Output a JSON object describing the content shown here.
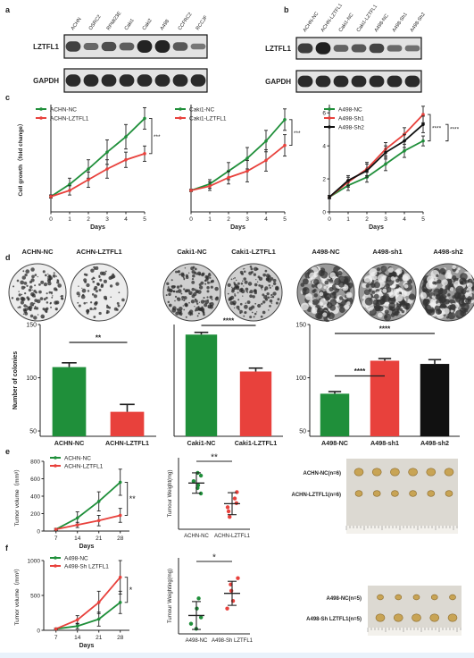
{
  "panel_letters": [
    "a",
    "b",
    "c",
    "d",
    "e",
    "f"
  ],
  "colors": {
    "nc": "#1f8f3a",
    "treat": "#e8413c",
    "sh2": "#111111",
    "axis": "#222222",
    "blot_bg": "#e3e3e3",
    "band": "#1d1d1d",
    "photo_bg": "#dcd9d2",
    "tumor": "#c8a455"
  },
  "blots": {
    "a": {
      "lanes": [
        "ACHN",
        "OSRC2",
        "RPMI23E",
        "Caki1",
        "Caki2",
        "A498",
        "CCFRC2",
        "RCCJF"
      ],
      "rows": [
        {
          "label": "LZTFL1",
          "intensity": [
            0.72,
            0.42,
            0.62,
            0.5,
            0.95,
            0.95,
            0.55,
            0.3
          ]
        },
        {
          "label": "GAPDH",
          "intensity": [
            0.9,
            0.9,
            0.9,
            0.9,
            0.9,
            0.9,
            0.9,
            0.9
          ]
        }
      ]
    },
    "b": {
      "lanes": [
        "ACHN-NC",
        "ACHN-LZTFL1",
        "Caki1-NC",
        "Caki1-LZTFL1",
        "A498-NC",
        "A498-Sh1",
        "A498-Sh2"
      ],
      "rows": [
        {
          "label": "LZTFL1",
          "intensity": [
            0.75,
            0.98,
            0.45,
            0.55,
            0.7,
            0.4,
            0.35
          ]
        },
        {
          "label": "GAPDH",
          "intensity": [
            0.9,
            0.9,
            0.9,
            0.9,
            0.9,
            0.9,
            0.9
          ]
        }
      ]
    }
  },
  "colony_dishes": {
    "labels": [
      "ACHN-NC",
      "ACHN-LZTFL1",
      "Caki1-NC",
      "Caki1-LZTFL1",
      "A498-NC",
      "A498-sh1",
      "A498-sh2"
    ],
    "density": [
      0.45,
      0.22,
      0.7,
      0.55,
      0.75,
      0.85,
      0.88
    ]
  },
  "tumor_photos": {
    "e": {
      "rows": [
        {
          "label": "ACHN-NC(n=6)",
          "count": 6,
          "size": 1.0
        },
        {
          "label": "ACHN-LZTFL1(n=6)",
          "count": 6,
          "size": 0.8
        }
      ]
    },
    "f": {
      "rows": [
        {
          "label": "A498-NC(n=5)",
          "count": 5,
          "size": 0.7
        },
        {
          "label": "A498-Sh LZTFL1(n=5)",
          "count": 5,
          "size": 1.0
        }
      ]
    }
  },
  "chart_data": [
    {
      "id": "c1",
      "type": "line",
      "ylabel": "Cell growth（fold change）",
      "xlabel": "Days",
      "x": [
        0,
        1,
        2,
        3,
        4,
        5
      ],
      "xlim": [
        0,
        5
      ],
      "ylim": [
        0,
        7
      ],
      "x_ticks": [
        "0",
        "1",
        "2",
        "3",
        "4",
        "5"
      ],
      "series": [
        {
          "name": "ACHN-NC",
          "values": [
            1.0,
            1.8,
            2.8,
            3.9,
            4.9,
            6.1
          ],
          "err": [
            0.1,
            0.4,
            0.6,
            0.8,
            0.8,
            0.7
          ]
        },
        {
          "name": "ACHN-LZTFL1",
          "values": [
            1.0,
            1.4,
            2.1,
            2.8,
            3.4,
            3.8
          ],
          "err": [
            0.1,
            0.3,
            0.5,
            0.6,
            0.5,
            0.5
          ]
        }
      ],
      "significance": "***"
    },
    {
      "id": "c2",
      "type": "line",
      "xlabel": "Days",
      "x": [
        0,
        1,
        2,
        3,
        4,
        5
      ],
      "xlim": [
        0,
        5
      ],
      "ylim": [
        0,
        5
      ],
      "x_ticks": [
        "0",
        "1",
        "2",
        "3",
        "4",
        "5"
      ],
      "series": [
        {
          "name": "Caki1-NC",
          "values": [
            1.0,
            1.3,
            1.9,
            2.5,
            3.3,
            4.3
          ],
          "err": [
            0.05,
            0.2,
            0.4,
            0.5,
            0.5,
            0.5
          ]
        },
        {
          "name": "Caki1-LZTFL1",
          "values": [
            1.0,
            1.2,
            1.6,
            1.9,
            2.4,
            3.1
          ],
          "err": [
            0.05,
            0.2,
            0.3,
            0.5,
            0.5,
            0.5
          ]
        }
      ],
      "significance": "***"
    },
    {
      "id": "c3",
      "type": "line",
      "xlabel": "Days",
      "x": [
        0,
        1,
        2,
        3,
        4,
        5
      ],
      "xlim": [
        0,
        5
      ],
      "ylim": [
        0,
        6.5
      ],
      "x_ticks": [
        "0",
        "1",
        "2",
        "3",
        "4",
        "5"
      ],
      "y_ticks": [
        "0",
        "2",
        "4",
        "6"
      ],
      "series": [
        {
          "name": "A498-NC",
          "values": [
            0.9,
            1.6,
            2.1,
            2.9,
            3.7,
            4.3
          ],
          "err": [
            0.1,
            0.3,
            0.3,
            0.4,
            0.4,
            0.3
          ]
        },
        {
          "name": "A498-Sh1",
          "values": [
            0.9,
            1.8,
            2.6,
            3.8,
            4.7,
            5.9
          ],
          "err": [
            0.1,
            0.3,
            0.4,
            0.4,
            0.4,
            0.5
          ]
        },
        {
          "name": "A498-Sh2",
          "values": [
            0.9,
            1.9,
            2.5,
            3.6,
            4.3,
            5.3
          ],
          "err": [
            0.1,
            0.3,
            0.4,
            0.4,
            0.4,
            0.5
          ]
        }
      ],
      "significance": [
        "****",
        "****"
      ]
    },
    {
      "id": "d1",
      "type": "bar",
      "ylabel": "Number of colonies",
      "categories": [
        "ACHN-NC",
        "ACHN-LZTFL1"
      ],
      "values": [
        110,
        68
      ],
      "err": [
        4,
        7
      ],
      "ylim": [
        45,
        150
      ],
      "y_ticks": [
        "50",
        "100",
        "150"
      ],
      "significance": "**"
    },
    {
      "id": "d2",
      "type": "bar",
      "categories": [
        "Caki1-NC",
        "Caki1-LZTFL1"
      ],
      "values": [
        91,
        58
      ],
      "err": [
        2,
        3
      ],
      "ylim": [
        0,
        100
      ],
      "significance": "****"
    },
    {
      "id": "d3",
      "type": "bar",
      "categories": [
        "A498-NC",
        "A498-sh1",
        "A498-sh2"
      ],
      "values": [
        85,
        116,
        113
      ],
      "err": [
        2,
        2,
        4
      ],
      "ylim": [
        45,
        150
      ],
      "y_ticks": [
        "50",
        "100",
        "150"
      ],
      "significance": [
        "****",
        "****"
      ]
    },
    {
      "id": "e1",
      "type": "line",
      "ylabel": "Tumor volume（mm³）",
      "xlabel": "Days",
      "x": [
        7,
        14,
        21,
        28
      ],
      "xlim": [
        3,
        31
      ],
      "ylim": [
        0,
        800
      ],
      "x_ticks": [
        "7",
        "14",
        "21",
        "28"
      ],
      "y_ticks": [
        "0",
        "200",
        "400",
        "600",
        "800"
      ],
      "series": [
        {
          "name": "ACHN-NC",
          "values": [
            20,
            150,
            340,
            560
          ],
          "err": [
            10,
            70,
            110,
            150
          ]
        },
        {
          "name": "ACHN-LZTFL1",
          "values": [
            20,
            70,
            120,
            180
          ],
          "err": [
            10,
            30,
            60,
            80
          ]
        }
      ],
      "significance": "**"
    },
    {
      "id": "e2",
      "type": "scatter",
      "ylabel": "Tumour Weight(mg)",
      "categories": [
        "ACHN-NC",
        "ACHN-LZTFL1"
      ],
      "ylim": [
        0,
        260
      ],
      "points": [
        [
          205,
          195,
          175,
          160,
          150,
          130
        ],
        [
          135,
          112,
          95,
          80,
          65,
          45
        ]
      ],
      "mean": [
        168,
        93
      ],
      "sd": [
        37,
        40
      ],
      "significance": "**"
    },
    {
      "id": "f1",
      "type": "line",
      "ylabel": "Tumor volume（mm³）",
      "xlabel": "Days",
      "x": [
        7,
        14,
        21,
        28
      ],
      "xlim": [
        3,
        31
      ],
      "ylim": [
        0,
        1000
      ],
      "x_ticks": [
        "7",
        "14",
        "21",
        "28"
      ],
      "y_ticks": [
        "0",
        "500",
        "1000"
      ],
      "series": [
        {
          "name": "A498-NC",
          "values": [
            20,
            60,
            160,
            400
          ],
          "err": [
            10,
            40,
            100,
            160
          ]
        },
        {
          "name": "A498-Sh LZTFL1",
          "values": [
            20,
            150,
            400,
            760
          ],
          "err": [
            10,
            60,
            160,
            240
          ]
        }
      ],
      "significance": "*"
    },
    {
      "id": "f2",
      "type": "scatter",
      "ylabel": "Tumour Weighting(mg)",
      "categories": [
        "A498-NC",
        "A498-Sh LZTFL1"
      ],
      "ylim": [
        0,
        600
      ],
      "points": [
        [
          280,
          200,
          130,
          80,
          40
        ],
        [
          440,
          390,
          340,
          260,
          200
        ]
      ],
      "mean": [
        145,
        320
      ],
      "sd": [
        110,
        95
      ],
      "significance": "*"
    }
  ]
}
